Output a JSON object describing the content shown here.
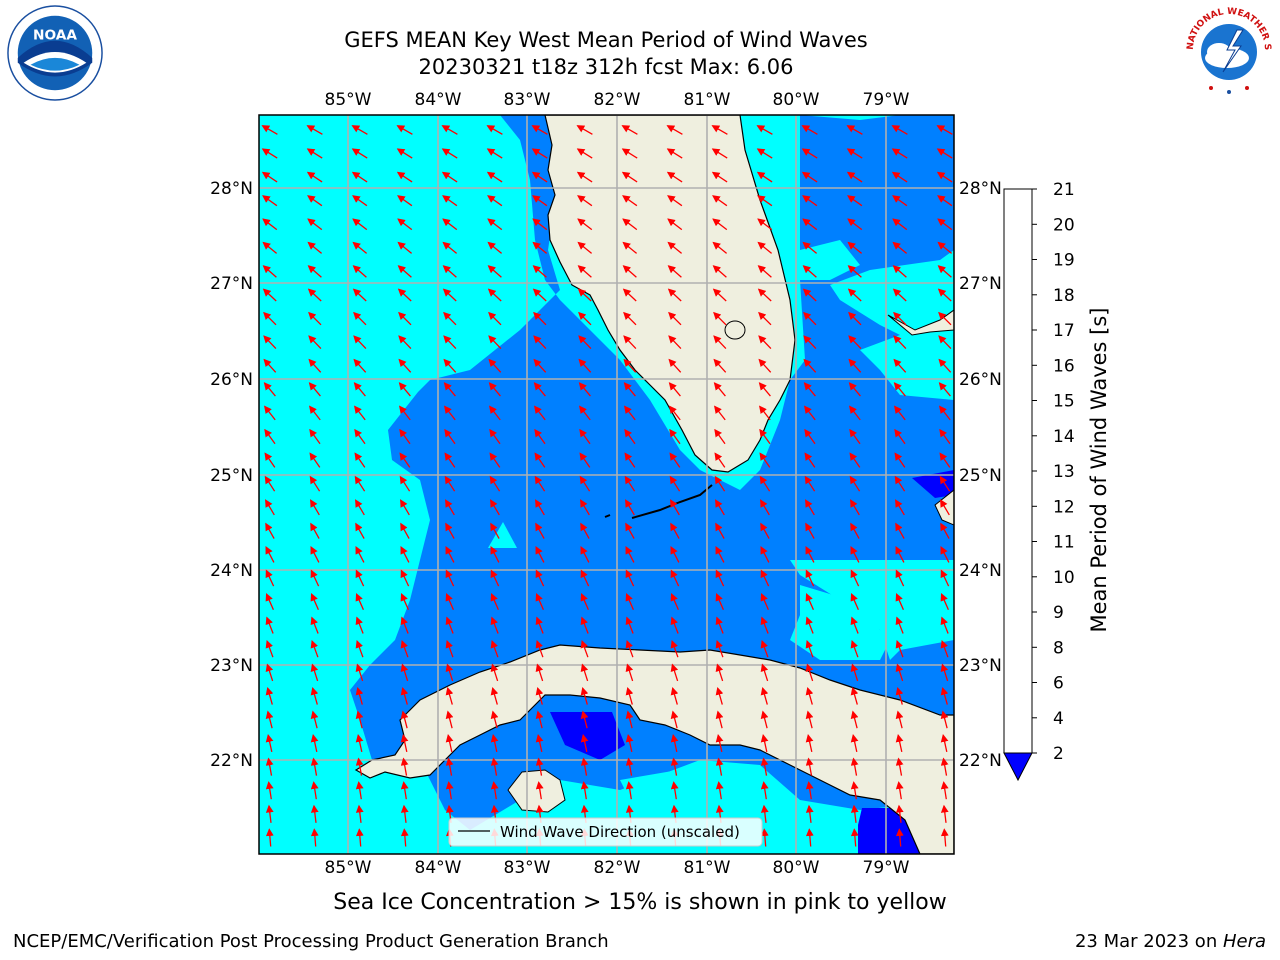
{
  "title": {
    "line1": "GEFS MEAN Key West Mean Period of Wind Waves",
    "line2": "20230321 t18z 312h fcst   Max: 6.06"
  },
  "map": {
    "lon_labels": [
      "85°W",
      "84°W",
      "83°W",
      "82°W",
      "81°W",
      "80°W",
      "79°W"
    ],
    "lat_labels": [
      "28°N",
      "27°N",
      "26°N",
      "25°N",
      "24°N",
      "23°N",
      "22°N"
    ],
    "colors": {
      "ocean_4_6": "#00ffff",
      "ocean_2_4": "#0080ff",
      "ocean_lt_2": "#0000ff",
      "land": "#efefdf",
      "arrow": "#ff0000",
      "grid": "#b0b0b0"
    },
    "legend": {
      "label": "Wind Wave Direction (unscaled)"
    }
  },
  "colorbar": {
    "label": "Mean Period of Wind Waves [s]",
    "ticks": [
      "2",
      "4",
      "6",
      "8",
      "9",
      "10",
      "11",
      "12",
      "13",
      "14",
      "15",
      "16",
      "17",
      "18",
      "19",
      "20",
      "21"
    ],
    "colors": [
      "#0080ff",
      "#00e6ff",
      "#00ffff",
      "#60ffff",
      "#a0ffff",
      "#40ff80",
      "#00ff00",
      "#40e600",
      "#80dd00",
      "#bbee00",
      "#e6ff00",
      "#ffff00",
      "#ffcc00",
      "#ffb000",
      "#ff8800",
      "#ff5500",
      "#ff2a00",
      "#ff0000"
    ],
    "under_color": "#0000ff"
  },
  "ice_note": "Sea Ice Concentration > 15% is shown in pink to yellow",
  "footer": {
    "left": "NCEP/EMC/Verification Post Processing Product Generation Branch",
    "right_prefix": "23 Mar 2023 on ",
    "right_host": "Hera"
  },
  "logos": {
    "noaa": "NOAA",
    "nws": "NATIONAL WEATHER SERVICE"
  }
}
